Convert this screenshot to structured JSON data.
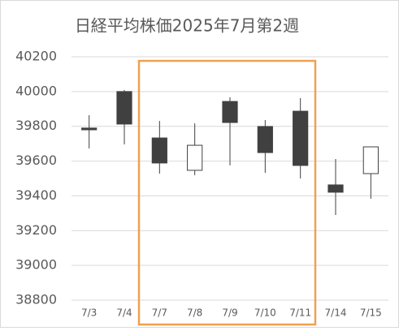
{
  "chart_data": {
    "type": "candlestick",
    "title": "日経平均株価2025年7月第2週",
    "categories": [
      "7/3",
      "7/4",
      "7/7",
      "7/8",
      "7/9",
      "7/10",
      "7/11",
      "7/14",
      "7/15"
    ],
    "open": [
      39790,
      40000,
      39733,
      39547,
      39943,
      39799,
      39887,
      39463,
      39528
    ],
    "high": [
      39864,
      40009,
      39831,
      39817,
      39967,
      39836,
      39962,
      39612,
      39682
    ],
    "low": [
      39673,
      39696,
      39528,
      39519,
      39575,
      39533,
      39500,
      39290,
      39383
    ],
    "close": [
      39780,
      39813,
      39589,
      39691,
      39822,
      39649,
      39575,
      39421,
      39682
    ],
    "up_color": "#ffffff",
    "down_color": "#404040",
    "ylim": [
      38800,
      40200
    ],
    "yticks": [
      38800,
      39000,
      39200,
      39400,
      39600,
      39800,
      40000,
      40200
    ],
    "grid": true
  }
}
